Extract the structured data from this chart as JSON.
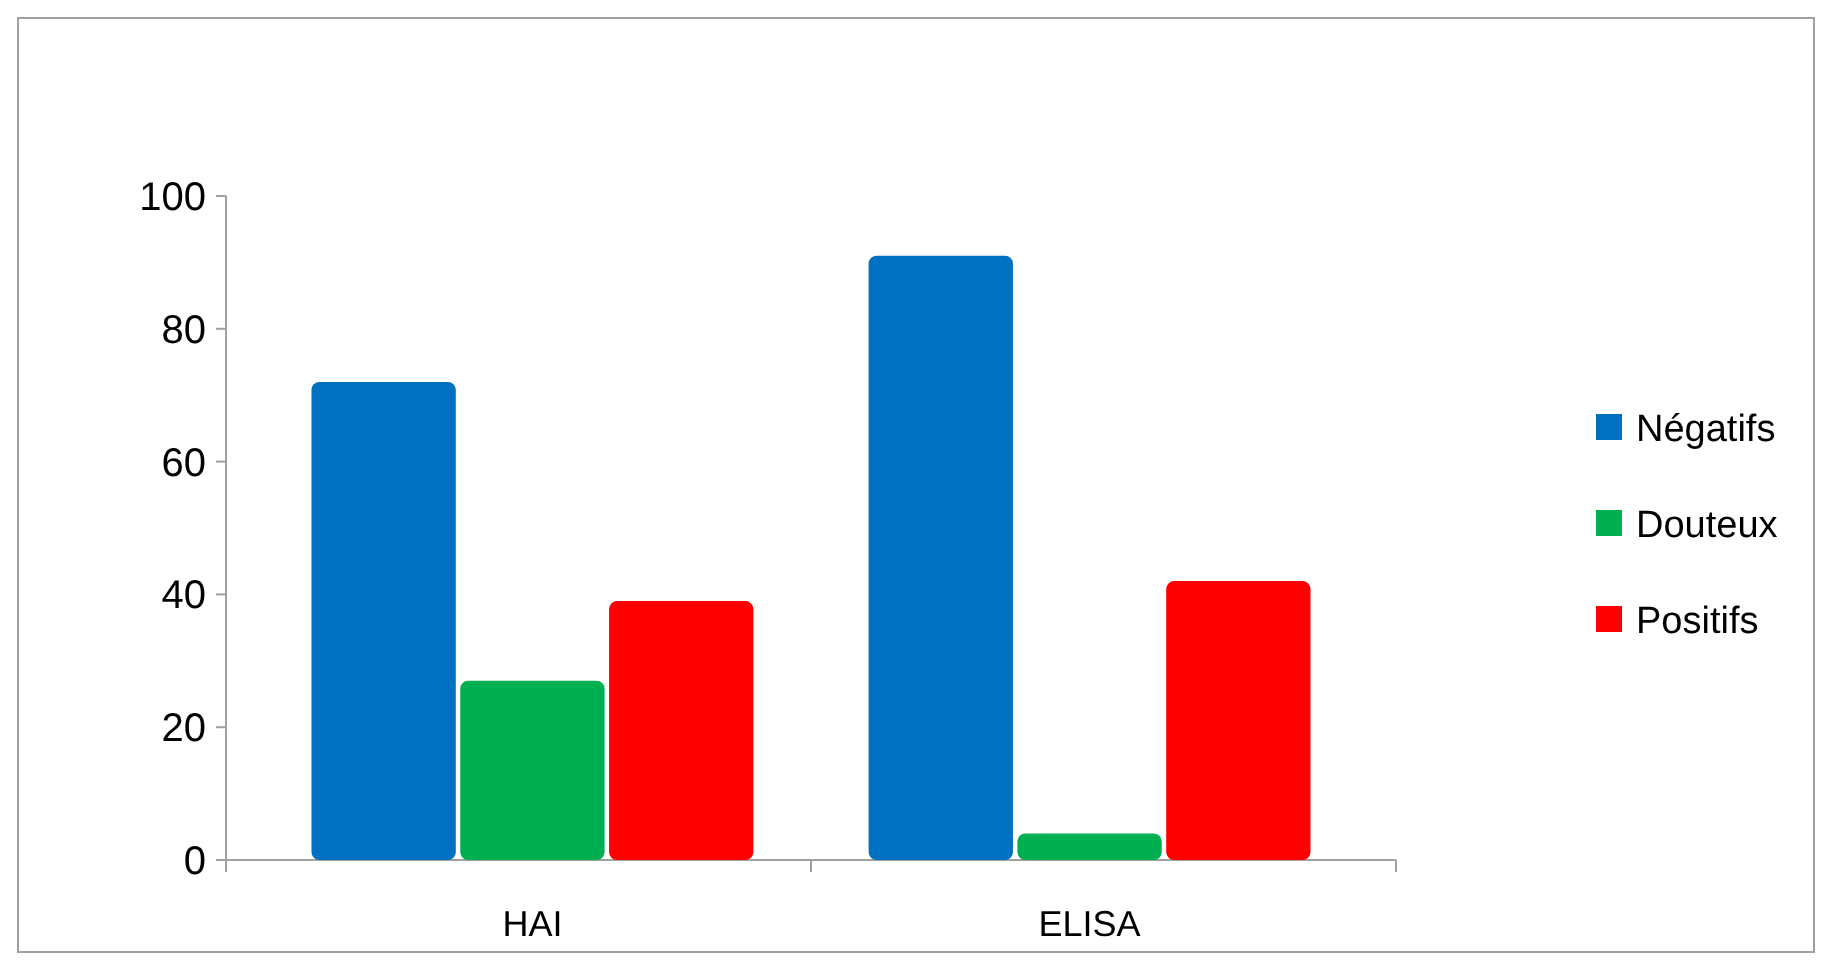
{
  "chart_data": {
    "type": "bar",
    "categories": [
      "HAI",
      "ELISA"
    ],
    "series": [
      {
        "name": "Négatifs",
        "color": "#0070c0",
        "values": [
          72,
          91
        ]
      },
      {
        "name": "Douteux",
        "color": "#00b050",
        "values": [
          27,
          4
        ]
      },
      {
        "name": "Positifs",
        "color": "#ff0000",
        "values": [
          39,
          42
        ]
      }
    ],
    "ylim": [
      0,
      100
    ],
    "yticks": [
      0,
      20,
      40,
      60,
      80,
      100
    ],
    "grid": false,
    "legend": "right"
  }
}
